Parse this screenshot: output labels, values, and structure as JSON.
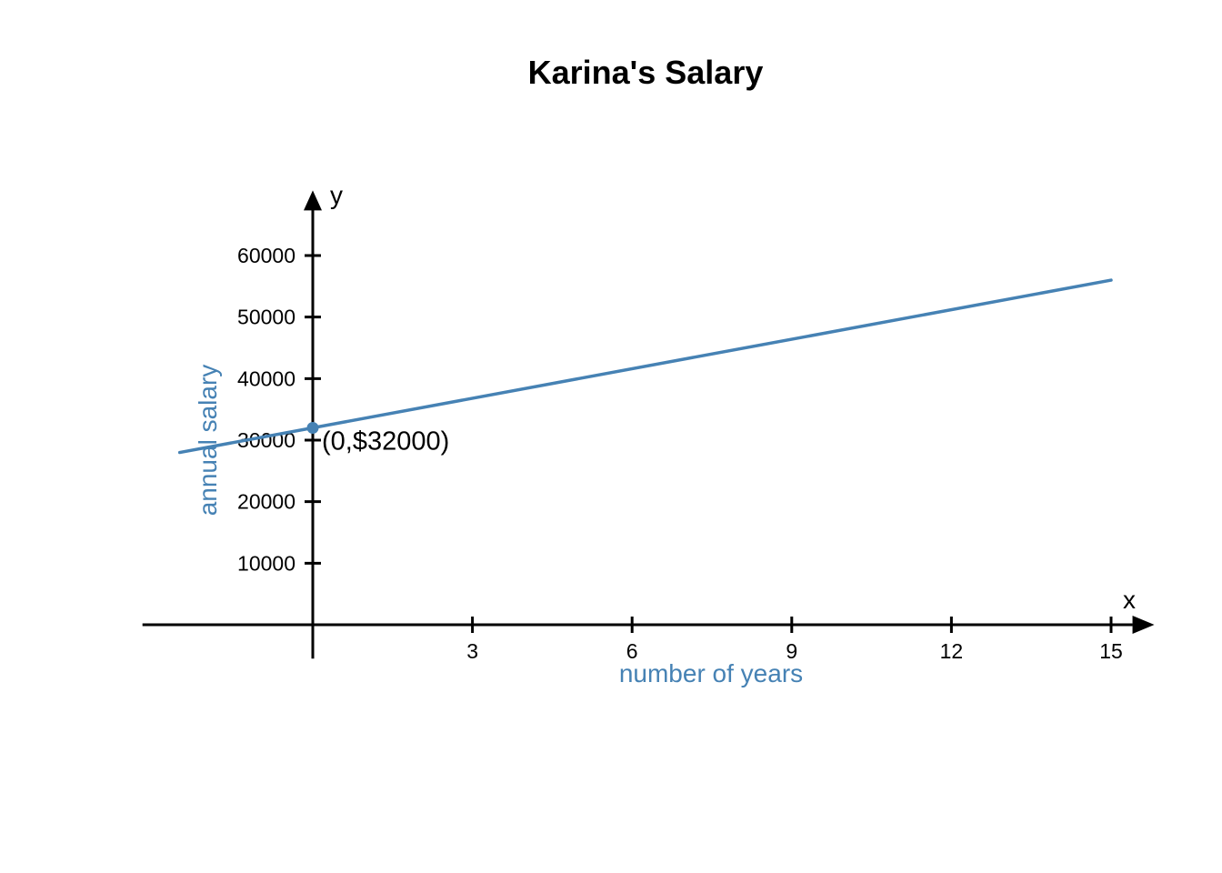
{
  "chart_data": {
    "type": "line",
    "title": "Karina's Salary",
    "xlabel": "number of years",
    "ylabel": "annual salary",
    "x_axis_name": "x",
    "y_axis_name": "y",
    "xlim": [
      -3.2,
      15.3
    ],
    "ylim": [
      -5500,
      70000
    ],
    "x_ticks": [
      3,
      6,
      9,
      12,
      15
    ],
    "y_ticks": [
      10000,
      20000,
      30000,
      40000,
      50000,
      60000
    ],
    "series": [
      {
        "color": "#4682B4",
        "x": [
          -2.5,
          15
        ],
        "y": [
          28000,
          56000
        ]
      }
    ],
    "points": [
      {
        "x": 0,
        "y": 32000,
        "label": "(0,$32000)",
        "color": "#4682B4"
      }
    ],
    "grid": false,
    "axis_color": "#000000",
    "label_color": "#4682B4"
  }
}
